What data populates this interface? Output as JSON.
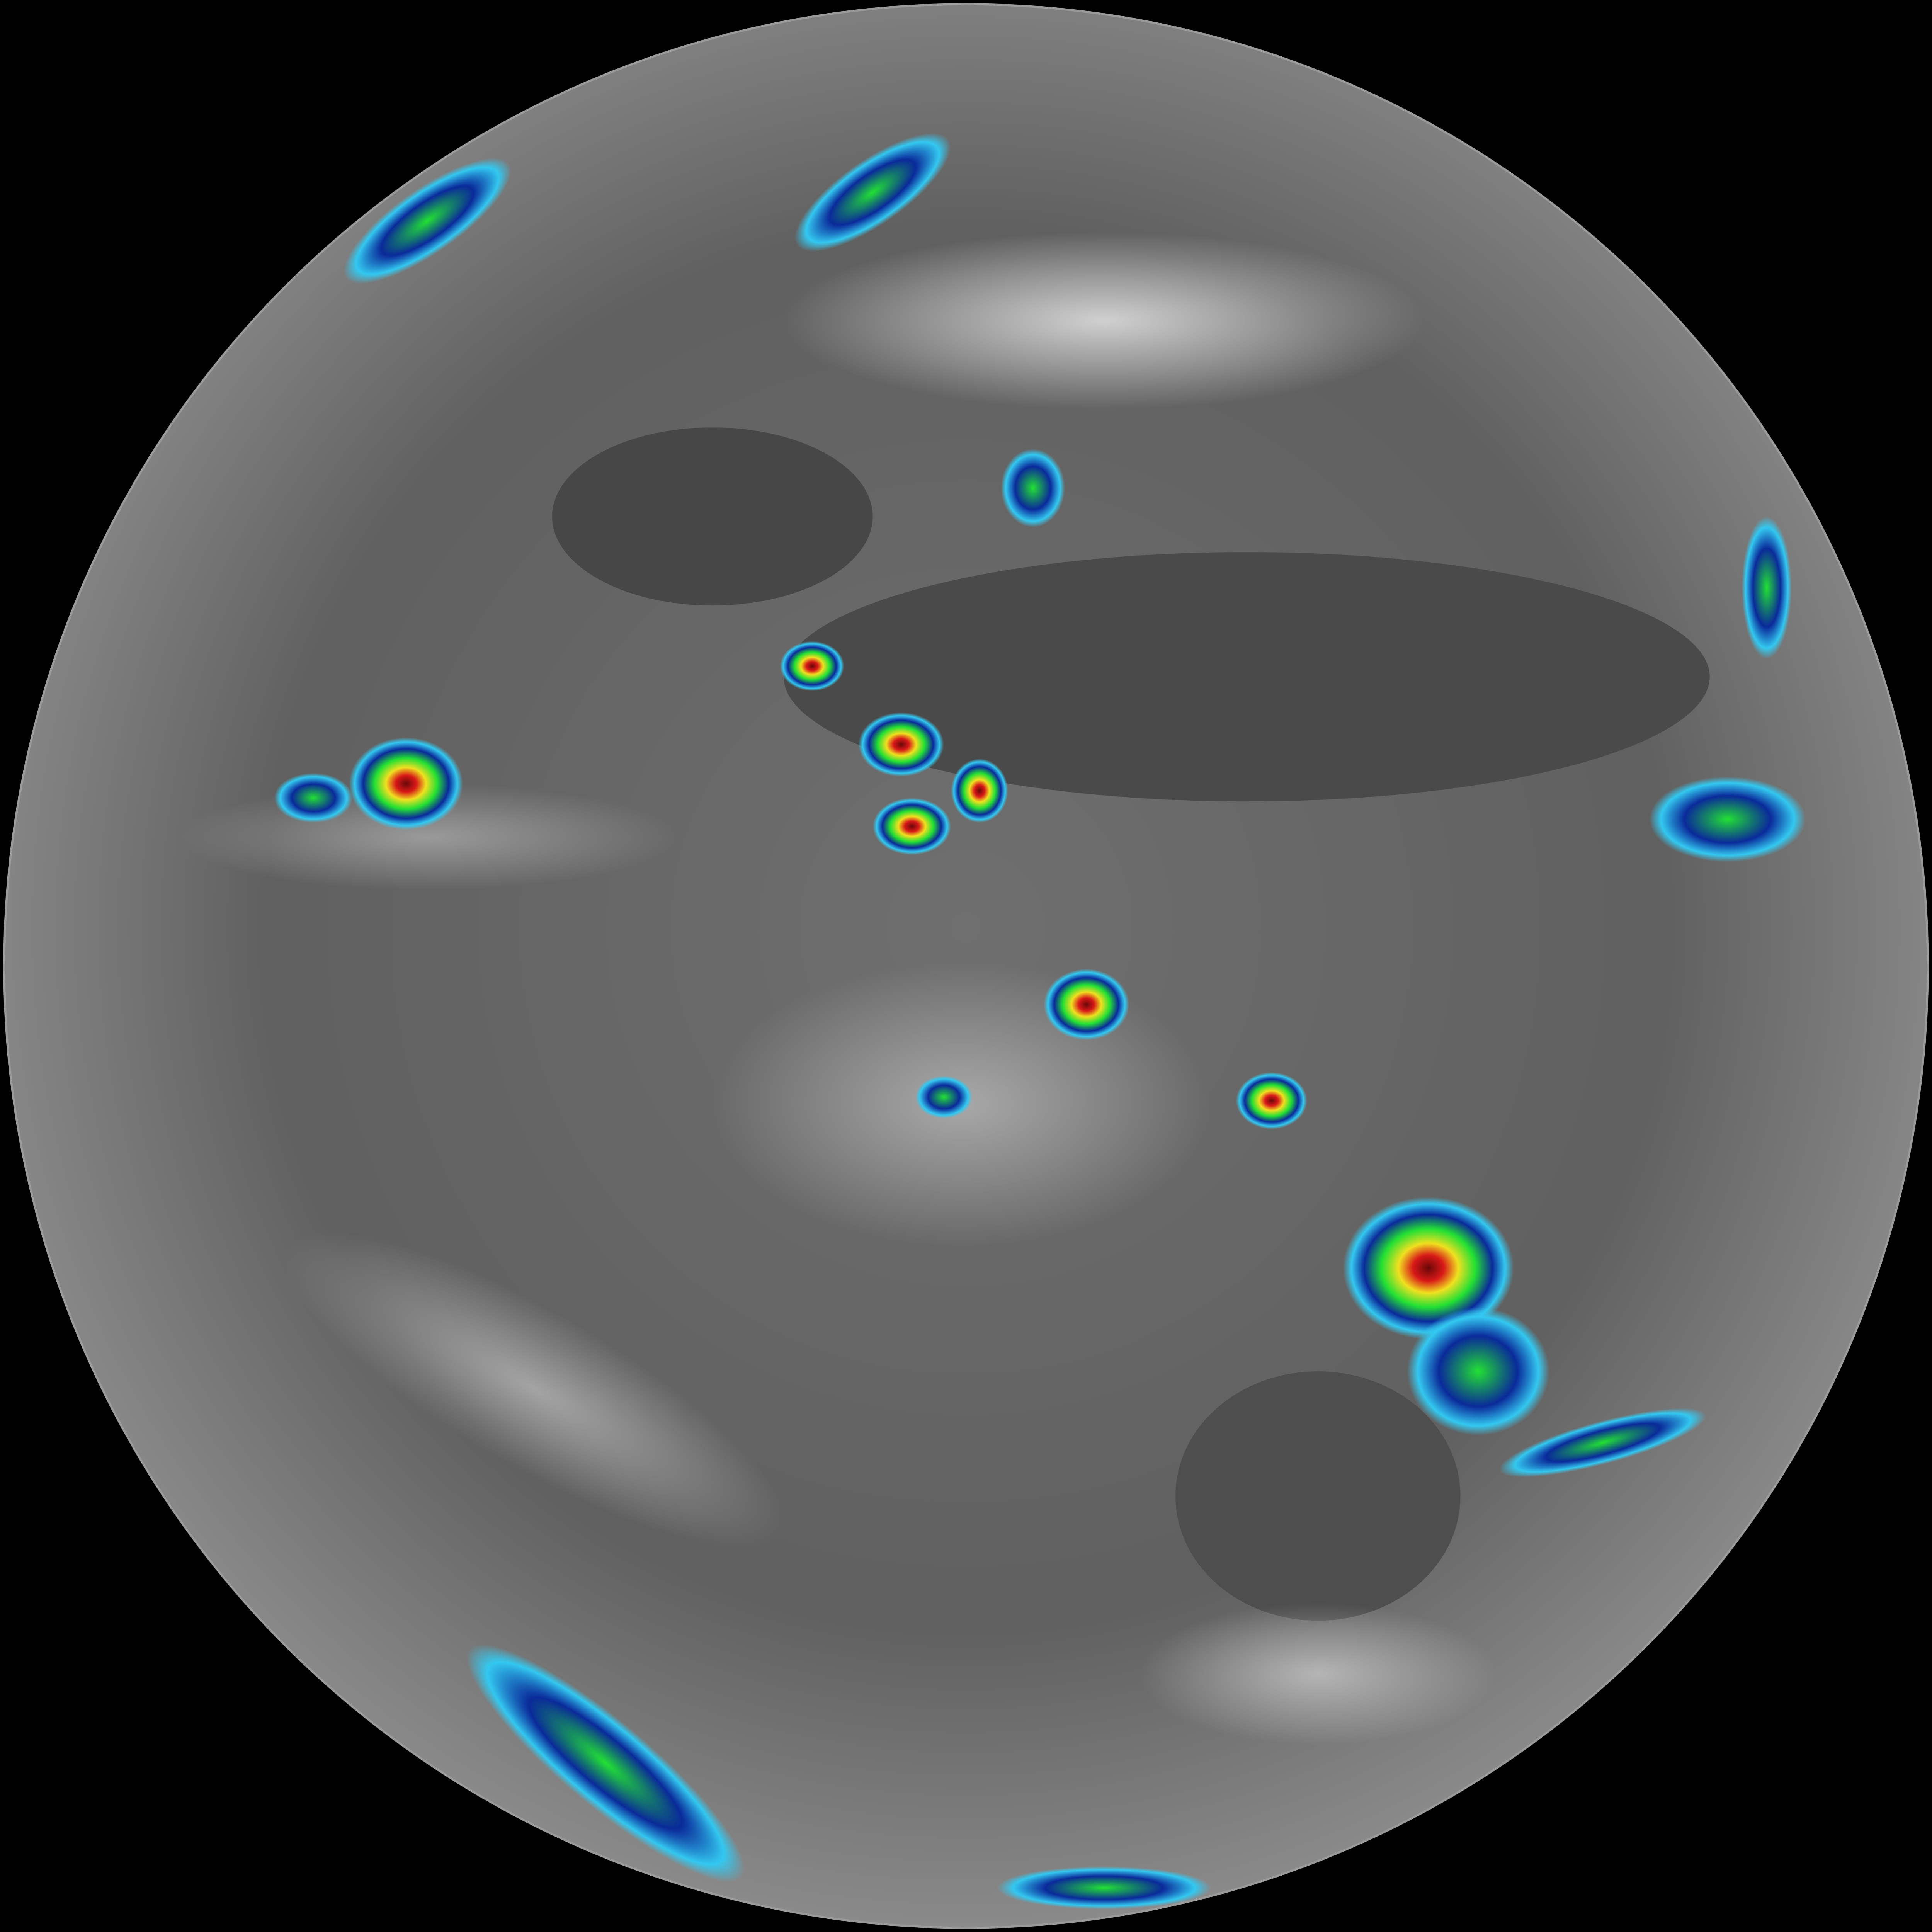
{
  "image": {
    "kind": "full-disk infrared satellite view of Earth",
    "colors": {
      "space": "#000000",
      "disk_light": "#8a8a8a",
      "disk_dark": "#3c3c3c",
      "cloud": "#d8d8d8",
      "coast_lines": "#e6e6e6",
      "enhance_cyan": "#33c8f0",
      "enhance_blue": "#0a2a9a",
      "enhance_green": "#22e033",
      "enhance_yellow": "#f0e020",
      "enhance_red": "#d81818",
      "enhance_dark_red": "#6a0808"
    }
  }
}
